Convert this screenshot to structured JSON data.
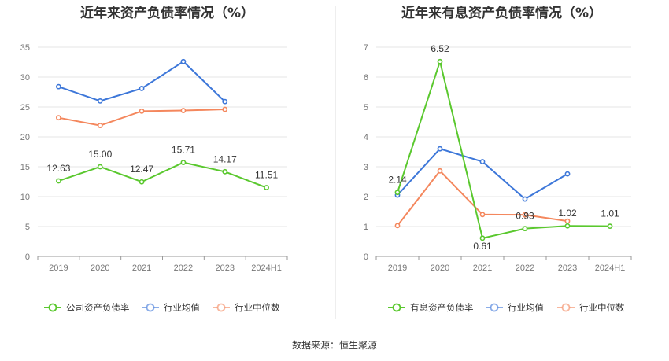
{
  "source_label": "数据来源：恒生聚源",
  "chart_data": [
    {
      "type": "line",
      "title": "近年来资产负债率情况（%）",
      "categories": [
        "2019",
        "2020",
        "2021",
        "2022",
        "2023",
        "2024H1"
      ],
      "ylim": [
        0,
        35
      ],
      "yticks": [
        "0",
        "5",
        "10",
        "15",
        "20",
        "25",
        "30",
        "35"
      ],
      "grid": true,
      "legend_position": "bottom",
      "series": [
        {
          "name": "公司资产负债率",
          "color": "#5ac82e",
          "labeled": true,
          "values": [
            12.63,
            15.0,
            12.47,
            15.71,
            14.17,
            11.51
          ],
          "labels": [
            "12.63",
            "15.00",
            "12.47",
            "15.71",
            "14.17",
            "11.51"
          ]
        },
        {
          "name": "行业均值",
          "color": "#3d77d9",
          "labeled": false,
          "values": [
            28.4,
            26.0,
            28.1,
            32.6,
            25.9,
            null
          ]
        },
        {
          "name": "行业中位数",
          "color": "#f4875d",
          "labeled": false,
          "values": [
            23.2,
            21.9,
            24.3,
            24.4,
            24.6,
            null
          ]
        }
      ]
    },
    {
      "type": "line",
      "title": "近年来有息资产负债率情况（%）",
      "categories": [
        "2019",
        "2020",
        "2021",
        "2022",
        "2023",
        "2024H1"
      ],
      "ylim": [
        0,
        7
      ],
      "yticks": [
        "0",
        "1",
        "2",
        "3",
        "4",
        "5",
        "6",
        "7"
      ],
      "grid": true,
      "legend_position": "bottom",
      "series": [
        {
          "name": "有息资产负债率",
          "color": "#5ac82e",
          "labeled": true,
          "values": [
            2.14,
            6.52,
            0.61,
            0.93,
            1.02,
            1.01
          ],
          "labels": [
            "2.14",
            "6.52",
            "0.61",
            "0.93",
            "1.02",
            "1.01"
          ]
        },
        {
          "name": "行业均值",
          "color": "#3d77d9",
          "labeled": false,
          "values": [
            2.05,
            3.6,
            3.17,
            1.92,
            2.76,
            null
          ]
        },
        {
          "name": "行业中位数",
          "color": "#f4875d",
          "labeled": false,
          "values": [
            1.03,
            2.86,
            1.4,
            1.39,
            1.18,
            null
          ]
        }
      ]
    }
  ]
}
